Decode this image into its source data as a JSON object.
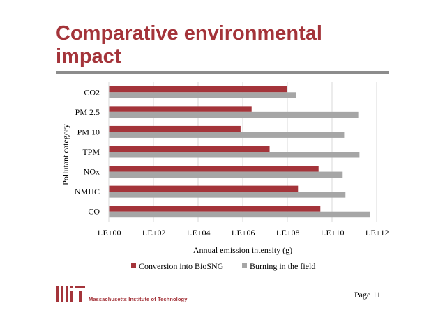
{
  "slide": {
    "title": "Comparative environmental impact",
    "page_label": "Page 11",
    "logo_text": "Massachusetts Institute of Technology",
    "logo_letters": "MIT"
  },
  "colors": {
    "title": "#a4343a",
    "conversion": "#a4343a",
    "burning": "#a6a6a6",
    "grid": "#d9d9d9"
  },
  "chart_data": {
    "type": "bar",
    "orientation": "horizontal",
    "xscale": "log",
    "categories": [
      "CO2",
      "PM 2.5",
      "PM 10",
      "TPM",
      "NOx",
      "NMHC",
      "CO"
    ],
    "series": [
      {
        "name": "Conversion into BioSNG",
        "values": [
          100000000.0,
          2500000.0,
          800000.0,
          16000000.0,
          2500000000.0,
          300000000.0,
          3000000000.0
        ]
      },
      {
        "name": "Burning in the field",
        "values": [
          250000000.0,
          150000000000.0,
          35000000000.0,
          170000000000.0,
          30000000000.0,
          40000000000.0,
          500000000000.0
        ]
      }
    ],
    "xlabel": "Annual emission intensity (g)",
    "ylabel": "Pollutant category",
    "xlim": [
      1,
      1000000000000.0
    ],
    "x_ticks": [
      1,
      100.0,
      10000.0,
      1000000.0,
      100000000.0,
      10000000000.0,
      1000000000000.0
    ],
    "x_tick_labels": [
      "1.E+00",
      "1.E+02",
      "1.E+04",
      "1.E+06",
      "1.E+08",
      "1.E+10",
      "1.E+12"
    ],
    "grid": "vertical",
    "legend_position": "bottom"
  }
}
